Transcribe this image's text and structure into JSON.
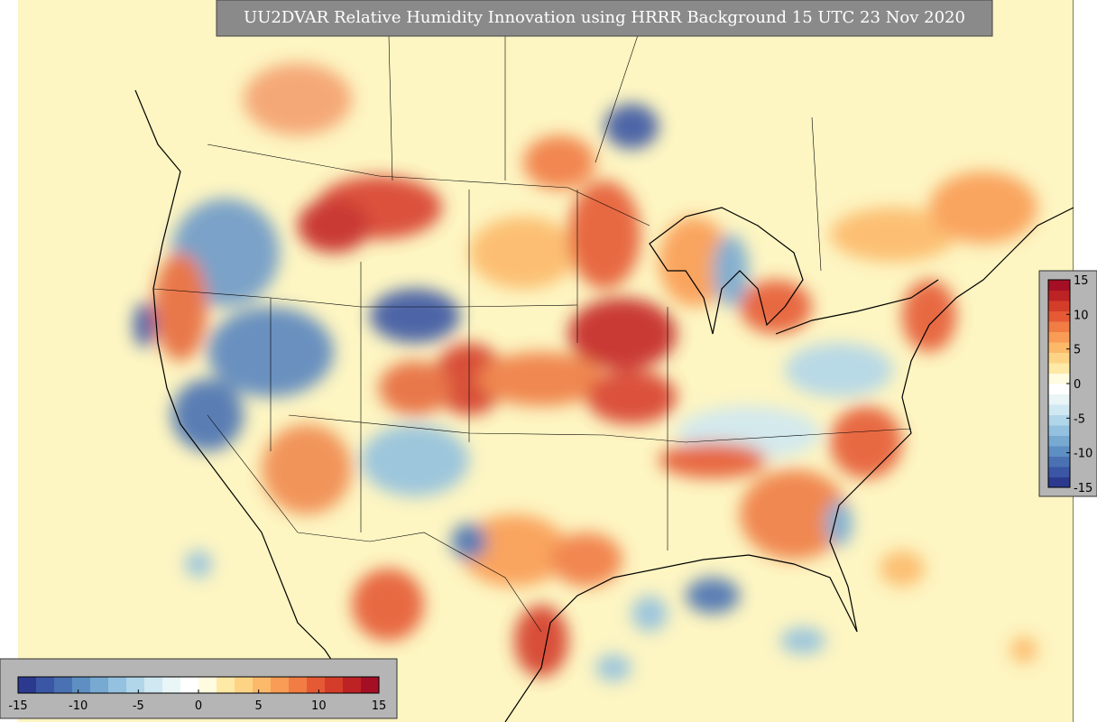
{
  "title": "UU2DVAR Relative Humidity Innovation using HRRR Background 15 UTC 23 Nov 2020",
  "colorbars": [
    {
      "orientation": "horizontal",
      "limits": [
        -15,
        15
      ],
      "ticks": [
        -15,
        -10,
        -5,
        0,
        5,
        10,
        15
      ]
    },
    {
      "orientation": "vertical",
      "limits": [
        -15,
        15
      ],
      "ticks": [
        15,
        10,
        5,
        0,
        -5,
        -10,
        -15
      ]
    }
  ],
  "palette": [
    "#2b3a8f",
    "#3a56a4",
    "#4a72b3",
    "#5e8fc2",
    "#77a9d1",
    "#93c1df",
    "#b1d6ea",
    "#cfe8f2",
    "#e9f5f7",
    "#ffffff",
    "#fffbe0",
    "#fee9a6",
    "#fdd485",
    "#fcb96a",
    "#f99c55",
    "#f17c44",
    "#e55a34",
    "#d43d2a",
    "#bd2224",
    "#a50f26"
  ]
}
